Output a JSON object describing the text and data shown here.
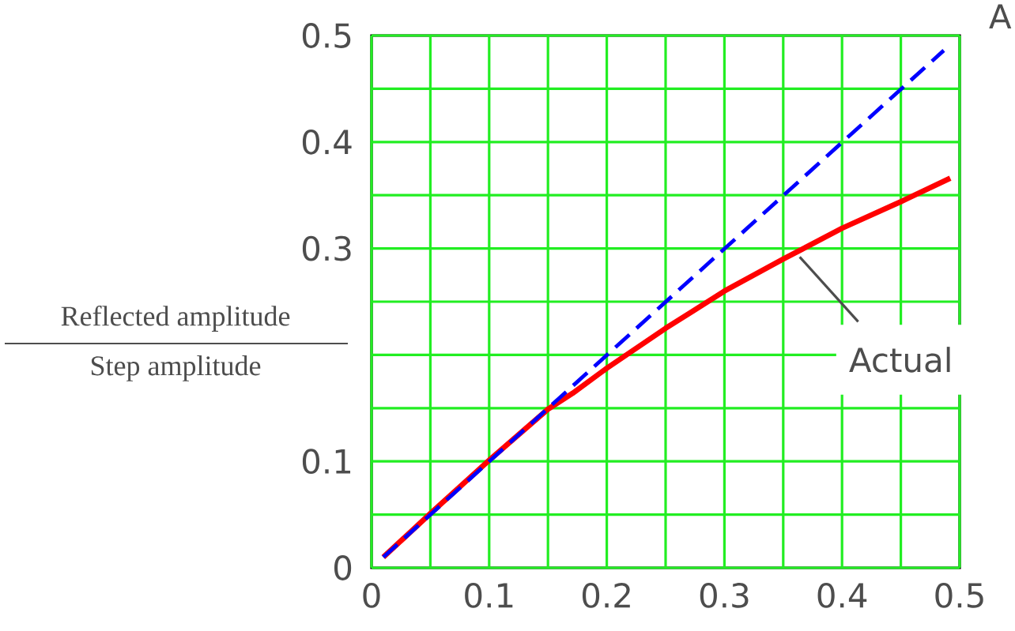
{
  "chart_data": {
    "type": "line",
    "ylabel": "Reflected amplitude",
    "annotations": [
      "Step amplitude",
      {
        "text": "Actual",
        "x": 0.364,
        "y": 0.292
      },
      "A"
    ],
    "xlim": [
      0,
      0.5
    ],
    "ylim": [
      0,
      0.5
    ],
    "xticks": [
      0,
      {
        "value": 0.05,
        "label": null
      },
      0.1,
      {
        "value": 0.15,
        "label": null
      },
      0.2,
      {
        "value": 0.25,
        "label": null
      },
      0.3,
      {
        "value": 0.35,
        "label": null
      },
      0.4,
      {
        "value": 0.45,
        "label": null
      },
      0.5
    ],
    "yticks": [
      0,
      {
        "value": 0.05,
        "label": null
      },
      0.1,
      {
        "value": 0.15,
        "label": null
      },
      {
        "value": 0.2,
        "label": null
      },
      {
        "value": 0.25,
        "label": null
      },
      0.3,
      {
        "value": 0.35,
        "label": null
      },
      0.4,
      {
        "value": 0.45,
        "label": null
      },
      0.5
    ],
    "grid": true,
    "series": [
      {
        "color": "#ff0000",
        "line_style": "solid",
        "x": [
          0.01,
          0.05,
          0.1,
          0.15,
          0.171,
          0.2,
          0.25,
          0.273,
          0.3,
          0.35,
          0.4,
          0.45,
          0.492
        ],
        "values": [
          0.01,
          0.051,
          0.101,
          0.149,
          0.164,
          0.1875,
          0.225,
          0.241,
          0.26,
          0.29,
          0.319,
          0.344,
          0.366
        ]
      },
      {
        "color": "#0000ff",
        "line_style": "dashed",
        "x": [
          0.01,
          0.4865
        ],
        "values": [
          0.01,
          0.486
        ]
      }
    ]
  }
}
